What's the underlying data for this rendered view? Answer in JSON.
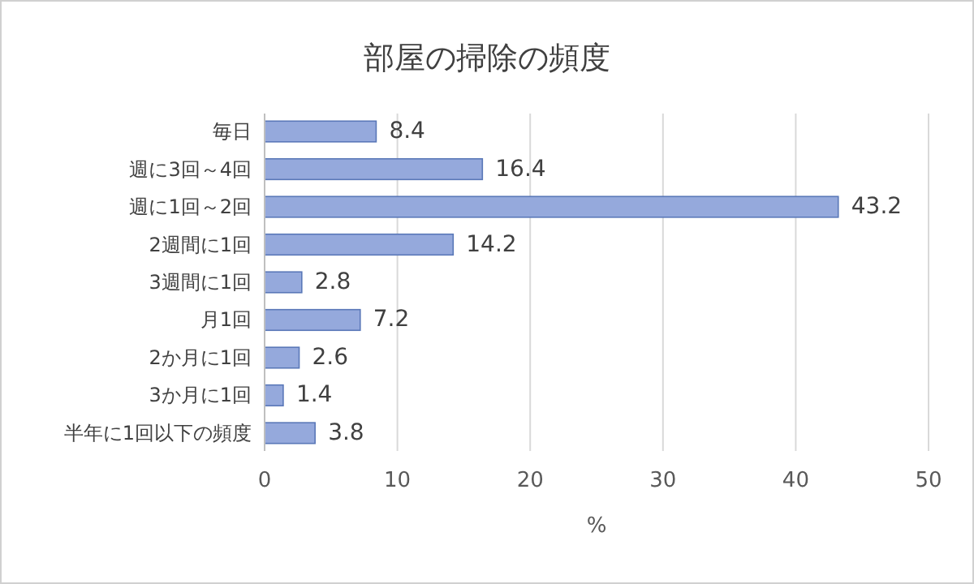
{
  "chart_data": {
    "type": "bar",
    "orientation": "horizontal",
    "title": "部屋の掃除の頻度",
    "xlabel": "%",
    "categories": [
      "毎日",
      "週に3回～4回",
      "週に1回～2回",
      "2週間に1回",
      "3週間に1回",
      "月1回",
      "2か月に1回",
      "3か月に1回",
      "半年に1回以下の頻度"
    ],
    "values": [
      8.4,
      16.4,
      43.2,
      14.2,
      2.8,
      7.2,
      2.6,
      1.4,
      3.8
    ],
    "color": "#95a9dc",
    "xlim": [
      0,
      50
    ],
    "xticks": [
      0,
      10,
      20,
      30,
      40,
      50
    ],
    "grid": "x",
    "data_labels": true
  }
}
